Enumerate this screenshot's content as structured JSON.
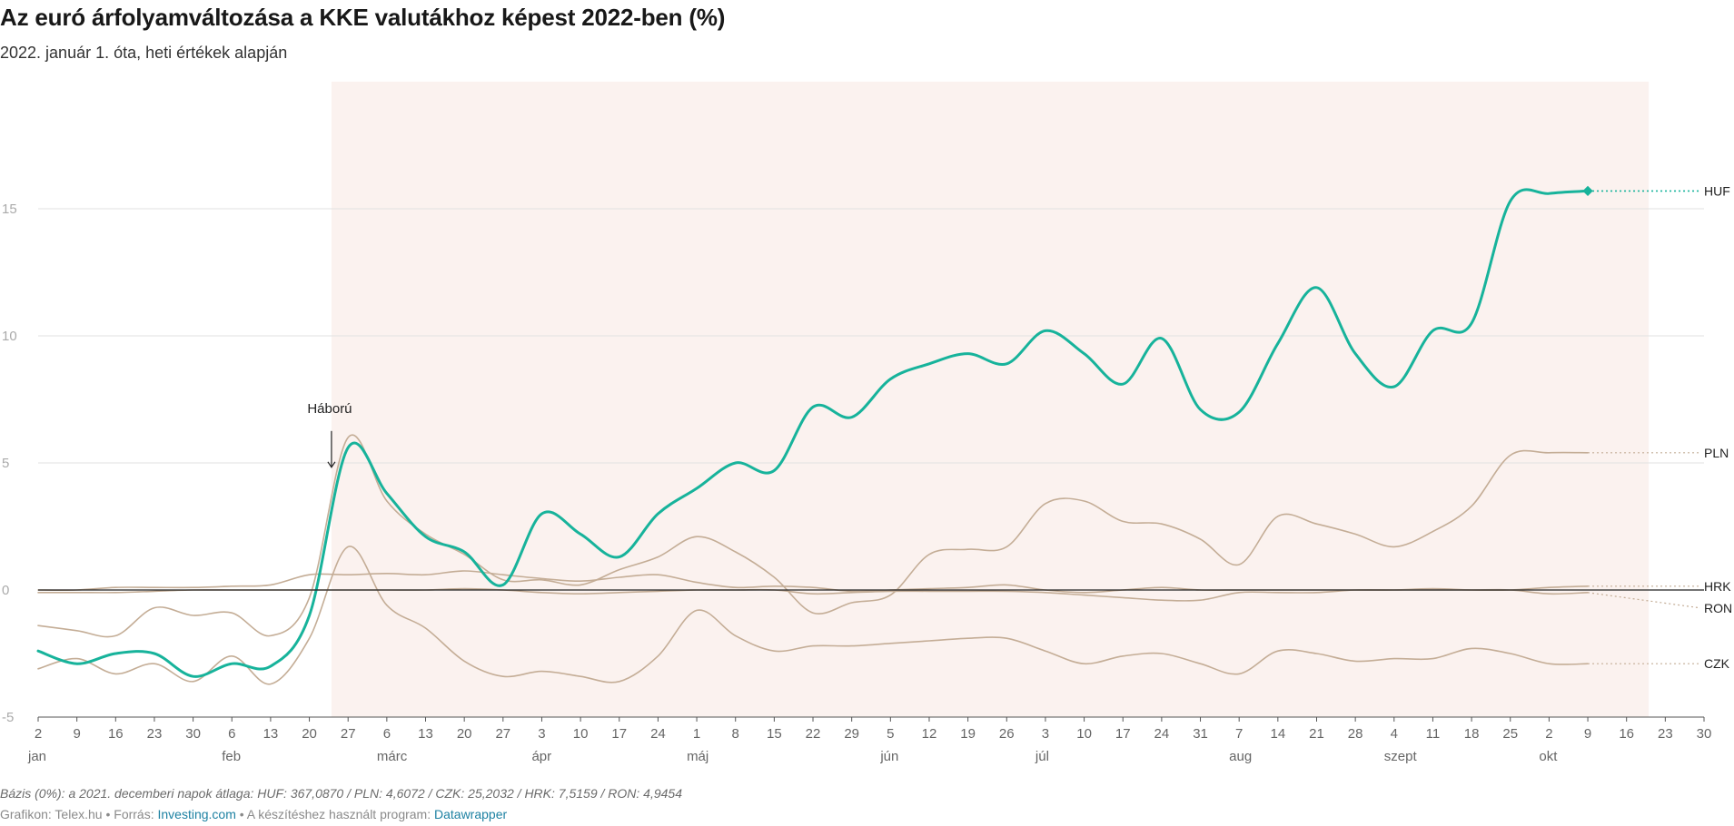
{
  "header": {
    "title": "Az euró árfolyamváltozása a KKE valutákhoz képest 2022-ben (%)",
    "subtitle": "2022. január 1. óta, heti értékek alapján"
  },
  "footer": {
    "notes": "Bázis (0%): a 2021. decemberi napok átlaga: HUF: 367,0870 / PLN: 4,6072 / CZK: 25,2032 / HRK: 7,5159 / RON: 4,9454",
    "credit_prefix": "Grafikon: Telex.hu • Forrás: ",
    "source_link": "Investing.com",
    "credit_middle": " • A készítéshez használt program: ",
    "tool_link": "Datawrapper"
  },
  "colors": {
    "highlight": "#17b39b",
    "muted": "#c4ad96",
    "zero": "#222222",
    "range": "#fbf2ef",
    "grid": "#e2e2e2"
  },
  "chart_data": {
    "type": "line",
    "title": "Az euró árfolyamváltozása a KKE valutákhoz képest 2022-ben (%)",
    "xlabel": "",
    "ylabel": "",
    "x_type": "date",
    "xlim": [
      "2022-01-02",
      "2022-10-30"
    ],
    "ylim": [
      -5,
      20
    ],
    "y_ticks": [
      -5,
      0,
      5,
      10,
      15
    ],
    "grid": true,
    "x_ticks": [
      "2022-01-02",
      "2022-01-09",
      "2022-01-16",
      "2022-01-23",
      "2022-01-30",
      "2022-02-06",
      "2022-02-13",
      "2022-02-20",
      "2022-02-27",
      "2022-03-06",
      "2022-03-13",
      "2022-03-20",
      "2022-03-27",
      "2022-04-03",
      "2022-04-10",
      "2022-04-17",
      "2022-04-24",
      "2022-05-01",
      "2022-05-08",
      "2022-05-15",
      "2022-05-22",
      "2022-05-29",
      "2022-06-05",
      "2022-06-12",
      "2022-06-19",
      "2022-06-26",
      "2022-07-03",
      "2022-07-10",
      "2022-07-17",
      "2022-07-24",
      "2022-07-31",
      "2022-08-07",
      "2022-08-14",
      "2022-08-21",
      "2022-08-28",
      "2022-09-04",
      "2022-09-11",
      "2022-09-18",
      "2022-09-25",
      "2022-10-02",
      "2022-10-09",
      "2022-10-16",
      "2022-10-23",
      "2022-10-30"
    ],
    "x_tick_labels": [
      "2",
      "9",
      "16",
      "23",
      "30",
      "6",
      "13",
      "20",
      "27",
      "6",
      "13",
      "20",
      "27",
      "3",
      "10",
      "17",
      "24",
      "1",
      "8",
      "15",
      "22",
      "29",
      "5",
      "12",
      "19",
      "26",
      "3",
      "10",
      "17",
      "24",
      "31",
      "7",
      "14",
      "21",
      "28",
      "4",
      "11",
      "18",
      "25",
      "2",
      "9",
      "16",
      "23",
      "30"
    ],
    "month_labels": [
      {
        "date": "2022-01-02",
        "label": "jan"
      },
      {
        "date": "2022-02-06",
        "label": "feb"
      },
      {
        "date": "2022-03-06",
        "label": "márc"
      },
      {
        "date": "2022-04-03",
        "label": "ápr"
      },
      {
        "date": "2022-05-01",
        "label": "máj"
      },
      {
        "date": "2022-06-05",
        "label": "jún"
      },
      {
        "date": "2022-07-03",
        "label": "júl"
      },
      {
        "date": "2022-08-07",
        "label": "aug"
      },
      {
        "date": "2022-09-04",
        "label": "szept"
      },
      {
        "date": "2022-10-02",
        "label": "okt"
      }
    ],
    "highlight_range": {
      "from": "2022-02-24",
      "to": "2022-10-20"
    },
    "annotation": {
      "text": "Háború",
      "date": "2022-02-24",
      "y": 6.9
    },
    "series": [
      {
        "name": "PLN",
        "highlight": false,
        "x": [
          "2022-01-02",
          "2022-01-09",
          "2022-01-16",
          "2022-01-23",
          "2022-01-30",
          "2022-02-06",
          "2022-02-13",
          "2022-02-20",
          "2022-02-27",
          "2022-03-06",
          "2022-03-13",
          "2022-03-20",
          "2022-03-27",
          "2022-04-03",
          "2022-04-10",
          "2022-04-17",
          "2022-04-24",
          "2022-05-01",
          "2022-05-08",
          "2022-05-15",
          "2022-05-22",
          "2022-05-29",
          "2022-06-05",
          "2022-06-12",
          "2022-06-19",
          "2022-06-26",
          "2022-07-03",
          "2022-07-10",
          "2022-07-17",
          "2022-07-24",
          "2022-07-31",
          "2022-08-07",
          "2022-08-14",
          "2022-08-21",
          "2022-08-28",
          "2022-09-04",
          "2022-09-11",
          "2022-09-18",
          "2022-09-25",
          "2022-10-02",
          "2022-10-09"
        ],
        "y": [
          -1.4,
          -1.6,
          -1.8,
          -0.7,
          -1.0,
          -0.9,
          -1.8,
          -0.3,
          6.0,
          3.5,
          2.2,
          1.4,
          0.4,
          0.4,
          0.2,
          0.8,
          1.3,
          2.1,
          1.5,
          0.5,
          -0.9,
          -0.5,
          -0.2,
          1.4,
          1.6,
          1.7,
          3.4,
          3.5,
          2.7,
          2.6,
          2.0,
          1.0,
          2.9,
          2.6,
          2.2,
          1.7,
          2.3,
          3.3,
          5.3,
          5.4,
          5.4
        ]
      },
      {
        "name": "CZK",
        "highlight": false,
        "x": [
          "2022-01-02",
          "2022-01-09",
          "2022-01-16",
          "2022-01-23",
          "2022-01-30",
          "2022-02-06",
          "2022-02-13",
          "2022-02-20",
          "2022-02-27",
          "2022-03-06",
          "2022-03-13",
          "2022-03-20",
          "2022-03-27",
          "2022-04-03",
          "2022-04-10",
          "2022-04-17",
          "2022-04-24",
          "2022-05-01",
          "2022-05-08",
          "2022-05-15",
          "2022-05-22",
          "2022-05-29",
          "2022-06-05",
          "2022-06-12",
          "2022-06-19",
          "2022-06-26",
          "2022-07-03",
          "2022-07-10",
          "2022-07-17",
          "2022-07-24",
          "2022-07-31",
          "2022-08-07",
          "2022-08-14",
          "2022-08-21",
          "2022-08-28",
          "2022-09-04",
          "2022-09-11",
          "2022-09-18",
          "2022-09-25",
          "2022-10-02",
          "2022-10-09"
        ],
        "y": [
          -3.1,
          -2.7,
          -3.3,
          -2.9,
          -3.6,
          -2.6,
          -3.7,
          -1.9,
          1.7,
          -0.6,
          -1.5,
          -2.8,
          -3.4,
          -3.2,
          -3.4,
          -3.6,
          -2.6,
          -0.8,
          -1.8,
          -2.4,
          -2.2,
          -2.2,
          -2.1,
          -2.0,
          -1.9,
          -1.9,
          -2.4,
          -2.9,
          -2.6,
          -2.5,
          -2.9,
          -3.3,
          -2.4,
          -2.5,
          -2.8,
          -2.7,
          -2.7,
          -2.3,
          -2.5,
          -2.9,
          -2.9
        ]
      },
      {
        "name": "HRK",
        "highlight": false,
        "x": [
          "2022-01-02",
          "2022-01-09",
          "2022-01-16",
          "2022-01-23",
          "2022-01-30",
          "2022-02-06",
          "2022-02-13",
          "2022-02-20",
          "2022-02-27",
          "2022-03-06",
          "2022-03-13",
          "2022-03-20",
          "2022-03-27",
          "2022-04-03",
          "2022-04-10",
          "2022-04-17",
          "2022-04-24",
          "2022-05-01",
          "2022-05-08",
          "2022-05-15",
          "2022-05-22",
          "2022-05-29",
          "2022-06-05",
          "2022-06-12",
          "2022-06-19",
          "2022-06-26",
          "2022-07-03",
          "2022-07-10",
          "2022-07-17",
          "2022-07-24",
          "2022-07-31",
          "2022-08-07",
          "2022-08-14",
          "2022-08-21",
          "2022-08-28",
          "2022-09-04",
          "2022-09-11",
          "2022-09-18",
          "2022-09-25",
          "2022-10-02",
          "2022-10-09"
        ],
        "y": [
          0.0,
          0.0,
          0.1,
          0.1,
          0.1,
          0.15,
          0.2,
          0.6,
          0.6,
          0.65,
          0.6,
          0.75,
          0.6,
          0.45,
          0.35,
          0.5,
          0.6,
          0.3,
          0.1,
          0.15,
          0.1,
          -0.05,
          0.0,
          0.05,
          0.1,
          0.2,
          0.0,
          -0.1,
          0.0,
          0.1,
          0.0,
          0.0,
          0.0,
          0.0,
          0.0,
          0.0,
          0.05,
          0.0,
          0.0,
          0.1,
          0.15
        ]
      },
      {
        "name": "RON",
        "highlight": false,
        "x": [
          "2022-01-02",
          "2022-01-09",
          "2022-01-16",
          "2022-01-23",
          "2022-01-30",
          "2022-02-06",
          "2022-02-13",
          "2022-02-20",
          "2022-02-27",
          "2022-03-06",
          "2022-03-13",
          "2022-03-20",
          "2022-03-27",
          "2022-04-03",
          "2022-04-10",
          "2022-04-17",
          "2022-04-24",
          "2022-05-01",
          "2022-05-08",
          "2022-05-15",
          "2022-05-22",
          "2022-05-29",
          "2022-06-05",
          "2022-06-12",
          "2022-06-19",
          "2022-06-26",
          "2022-07-03",
          "2022-07-10",
          "2022-07-17",
          "2022-07-24",
          "2022-07-31",
          "2022-08-07",
          "2022-08-14",
          "2022-08-21",
          "2022-08-28",
          "2022-09-04",
          "2022-09-11",
          "2022-09-18",
          "2022-09-25",
          "2022-10-02",
          "2022-10-09"
        ],
        "y": [
          -0.1,
          -0.1,
          -0.1,
          -0.05,
          0.0,
          0.0,
          0.0,
          0.0,
          0.0,
          0.0,
          0.0,
          0.05,
          0.0,
          -0.1,
          -0.15,
          -0.1,
          -0.05,
          0.0,
          0.0,
          0.0,
          -0.15,
          -0.1,
          -0.05,
          -0.05,
          -0.05,
          -0.05,
          -0.1,
          -0.2,
          -0.3,
          -0.4,
          -0.4,
          -0.1,
          -0.1,
          -0.1,
          0.0,
          0.0,
          0.0,
          0.0,
          0.0,
          -0.15,
          -0.1
        ]
      },
      {
        "name": "HUF",
        "highlight": true,
        "x": [
          "2022-01-02",
          "2022-01-09",
          "2022-01-16",
          "2022-01-23",
          "2022-01-30",
          "2022-02-06",
          "2022-02-13",
          "2022-02-20",
          "2022-02-27",
          "2022-03-06",
          "2022-03-13",
          "2022-03-20",
          "2022-03-27",
          "2022-04-03",
          "2022-04-10",
          "2022-04-17",
          "2022-04-24",
          "2022-05-01",
          "2022-05-08",
          "2022-05-15",
          "2022-05-22",
          "2022-05-29",
          "2022-06-05",
          "2022-06-12",
          "2022-06-19",
          "2022-06-26",
          "2022-07-03",
          "2022-07-10",
          "2022-07-17",
          "2022-07-24",
          "2022-07-31",
          "2022-08-07",
          "2022-08-14",
          "2022-08-21",
          "2022-08-28",
          "2022-09-04",
          "2022-09-11",
          "2022-09-18",
          "2022-09-25",
          "2022-10-02",
          "2022-10-09"
        ],
        "y": [
          -2.4,
          -2.9,
          -2.5,
          -2.5,
          -3.4,
          -2.9,
          -3.0,
          -1.0,
          5.6,
          3.8,
          2.1,
          1.5,
          0.2,
          3.0,
          2.2,
          1.3,
          3.0,
          4.0,
          5.0,
          4.7,
          7.2,
          6.8,
          8.3,
          8.9,
          9.3,
          8.9,
          10.2,
          9.3,
          8.1,
          9.9,
          7.1,
          7.0,
          9.7,
          11.9,
          9.3,
          8.0,
          10.2,
          10.5,
          15.3,
          15.6,
          15.7
        ]
      }
    ]
  }
}
